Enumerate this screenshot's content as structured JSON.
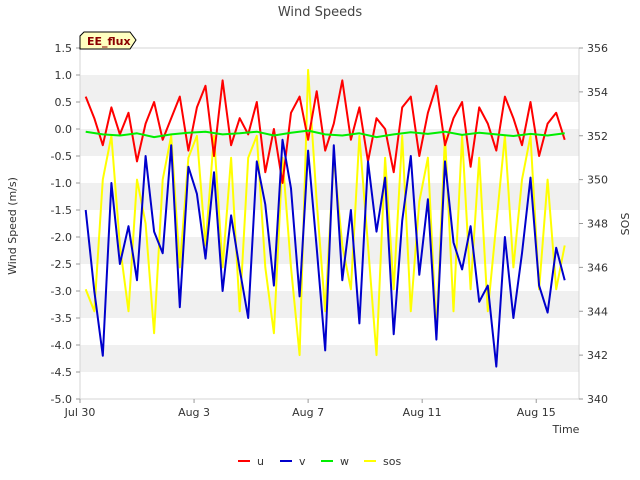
{
  "chart_data": {
    "type": "line",
    "title": "Wind Speeds",
    "badge": "EE_flux",
    "xlabel": "Time",
    "ylabel": "Wind Speed (m/s)",
    "y2label": "SOS",
    "xlim": [
      0,
      17.5
    ],
    "ylim": [
      -5.0,
      1.5
    ],
    "y2lim": [
      340,
      356
    ],
    "x_ticks": [
      {
        "value": 0,
        "label": "Jul 30"
      },
      {
        "value": 4,
        "label": "Aug 3"
      },
      {
        "value": 8,
        "label": "Aug 7"
      },
      {
        "value": 12,
        "label": "Aug 11"
      },
      {
        "value": 16,
        "label": "Aug 15"
      }
    ],
    "y_ticks": [
      "1.5",
      "1.0",
      "0.5",
      "0.0",
      "-0.5",
      "-1.0",
      "-1.5",
      "-2.0",
      "-2.5",
      "-3.0",
      "-3.5",
      "-4.0",
      "-4.5",
      "-5.0"
    ],
    "y_tick_values": [
      1.5,
      1.0,
      0.5,
      0.0,
      -0.5,
      -1.0,
      -1.5,
      -2.0,
      -2.5,
      -3.0,
      -3.5,
      -4.0,
      -4.5,
      -5.0
    ],
    "y2_ticks": [
      "340",
      "342",
      "344",
      "346",
      "348",
      "350",
      "352",
      "354",
      "356"
    ],
    "y2_tick_values": [
      340,
      342,
      344,
      346,
      348,
      350,
      352,
      354,
      356
    ],
    "series": [
      {
        "name": "u",
        "axis": "left",
        "color": "#ff0000",
        "x": [
          0.2,
          0.5,
          0.8,
          1.1,
          1.4,
          1.7,
          2.0,
          2.3,
          2.6,
          2.9,
          3.2,
          3.5,
          3.8,
          4.1,
          4.4,
          4.7,
          5.0,
          5.3,
          5.6,
          5.9,
          6.2,
          6.5,
          6.8,
          7.1,
          7.4,
          7.7,
          8.0,
          8.3,
          8.6,
          8.9,
          9.2,
          9.5,
          9.8,
          10.1,
          10.4,
          10.7,
          11.0,
          11.3,
          11.6,
          11.9,
          12.2,
          12.5,
          12.8,
          13.1,
          13.4,
          13.7,
          14.0,
          14.3,
          14.6,
          14.9,
          15.2,
          15.5,
          15.8,
          16.1,
          16.4,
          16.7,
          17.0
        ],
        "values": [
          0.6,
          0.2,
          -0.3,
          0.4,
          -0.1,
          0.3,
          -0.6,
          0.1,
          0.5,
          -0.2,
          0.2,
          0.6,
          -0.4,
          0.4,
          0.8,
          -0.5,
          0.9,
          -0.3,
          0.2,
          -0.1,
          0.5,
          -0.8,
          0.0,
          -1.0,
          0.3,
          0.6,
          -0.2,
          0.7,
          -0.4,
          0.1,
          0.9,
          -0.2,
          0.4,
          -0.6,
          0.2,
          0.0,
          -0.8,
          0.4,
          0.6,
          -0.5,
          0.3,
          0.8,
          -0.3,
          0.2,
          0.5,
          -0.7,
          0.4,
          0.1,
          -0.4,
          0.6,
          0.2,
          -0.3,
          0.5,
          -0.5,
          0.1,
          0.3,
          -0.2
        ]
      },
      {
        "name": "v",
        "axis": "left",
        "color": "#0000cc",
        "x": [
          0.2,
          0.5,
          0.8,
          1.1,
          1.4,
          1.7,
          2.0,
          2.3,
          2.6,
          2.9,
          3.2,
          3.5,
          3.8,
          4.1,
          4.4,
          4.7,
          5.0,
          5.3,
          5.6,
          5.9,
          6.2,
          6.5,
          6.8,
          7.1,
          7.4,
          7.7,
          8.0,
          8.3,
          8.6,
          8.9,
          9.2,
          9.5,
          9.8,
          10.1,
          10.4,
          10.7,
          11.0,
          11.3,
          11.6,
          11.9,
          12.2,
          12.5,
          12.8,
          13.1,
          13.4,
          13.7,
          14.0,
          14.3,
          14.6,
          14.9,
          15.2,
          15.5,
          15.8,
          16.1,
          16.4,
          16.7,
          17.0
        ],
        "values": [
          -1.5,
          -3.0,
          -4.2,
          -1.0,
          -2.5,
          -1.8,
          -2.8,
          -0.5,
          -1.9,
          -2.3,
          -0.3,
          -3.3,
          -0.7,
          -1.2,
          -2.4,
          -0.8,
          -3.0,
          -1.6,
          -2.6,
          -3.5,
          -0.6,
          -1.4,
          -2.9,
          -0.2,
          -1.1,
          -3.1,
          -0.4,
          -2.2,
          -4.1,
          -0.3,
          -2.8,
          -1.5,
          -3.6,
          -0.6,
          -1.9,
          -0.9,
          -3.8,
          -1.7,
          -0.5,
          -2.7,
          -1.3,
          -3.9,
          -0.6,
          -2.1,
          -2.6,
          -1.8,
          -3.2,
          -2.9,
          -4.4,
          -2.0,
          -3.5,
          -2.3,
          -0.9,
          -2.9,
          -3.4,
          -2.2,
          -2.8
        ]
      },
      {
        "name": "w",
        "axis": "left",
        "color": "#00ee00",
        "x": [
          0.2,
          0.8,
          1.4,
          2.0,
          2.6,
          3.2,
          3.8,
          4.4,
          5.0,
          5.6,
          6.2,
          6.8,
          7.4,
          8.0,
          8.6,
          9.2,
          9.8,
          10.4,
          11.0,
          11.6,
          12.2,
          12.8,
          13.4,
          14.0,
          14.6,
          15.2,
          15.8,
          16.4,
          17.0
        ],
        "values": [
          -0.05,
          -0.1,
          -0.12,
          -0.08,
          -0.15,
          -0.1,
          -0.07,
          -0.05,
          -0.1,
          -0.08,
          -0.05,
          -0.12,
          -0.07,
          -0.03,
          -0.1,
          -0.12,
          -0.08,
          -0.15,
          -0.1,
          -0.06,
          -0.09,
          -0.05,
          -0.11,
          -0.07,
          -0.1,
          -0.13,
          -0.09,
          -0.12,
          -0.08
        ]
      },
      {
        "name": "sos",
        "axis": "right",
        "color": "#ffff00",
        "x": [
          0.2,
          0.5,
          0.8,
          1.1,
          1.4,
          1.7,
          2.0,
          2.3,
          2.6,
          2.9,
          3.2,
          3.5,
          3.8,
          4.1,
          4.4,
          4.7,
          5.0,
          5.3,
          5.6,
          5.9,
          6.2,
          6.5,
          6.8,
          7.1,
          7.4,
          7.7,
          8.0,
          8.3,
          8.6,
          8.9,
          9.2,
          9.5,
          9.8,
          10.1,
          10.4,
          10.7,
          11.0,
          11.3,
          11.6,
          11.9,
          12.2,
          12.5,
          12.8,
          13.1,
          13.4,
          13.7,
          14.0,
          14.3,
          14.6,
          14.9,
          15.2,
          15.5,
          15.8,
          16.1,
          16.4,
          16.7,
          17.0
        ],
        "values": [
          345,
          344,
          350,
          352,
          347,
          344,
          350,
          348,
          343,
          350,
          352,
          346,
          351,
          352,
          347,
          352,
          346,
          351,
          344,
          351,
          352,
          346,
          343,
          351,
          346,
          342,
          355,
          349,
          344,
          351,
          347,
          345,
          352,
          347,
          342,
          351,
          345,
          352,
          344,
          349,
          351,
          343,
          352,
          344,
          352,
          345,
          351,
          344,
          348,
          352,
          346,
          350,
          352,
          345,
          350,
          345,
          347
        ]
      }
    ]
  }
}
